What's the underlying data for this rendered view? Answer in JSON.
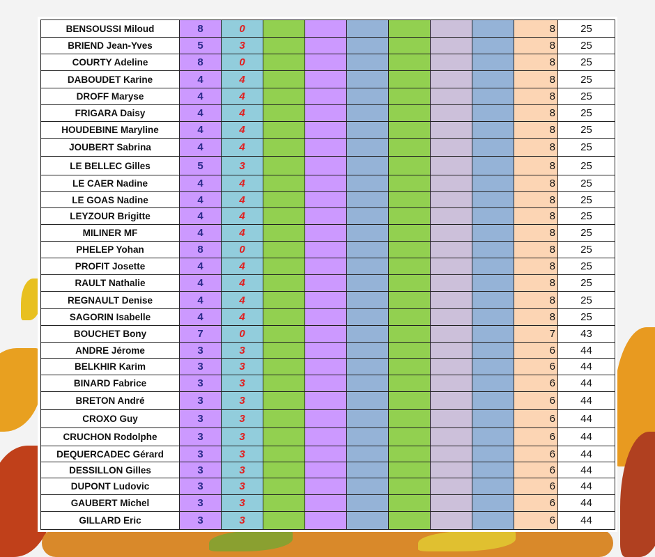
{
  "table": {
    "rows": [
      [
        "BENSOUSSI Miloud",
        "8",
        "0",
        "8",
        "25"
      ],
      [
        "BRIEND Jean-Yves",
        "5",
        "3",
        "8",
        "25"
      ],
      [
        "COURTY Adeline",
        "8",
        "0",
        "8",
        "25"
      ],
      [
        "DABOUDET Karine",
        "4",
        "4",
        "8",
        "25"
      ],
      [
        "DROFF Maryse",
        "4",
        "4",
        "8",
        "25"
      ],
      [
        "FRIGARA Daisy",
        "4",
        "4",
        "8",
        "25"
      ],
      [
        "HOUDEBINE Maryline",
        "4",
        "4",
        "8",
        "25"
      ],
      [
        "JOUBERT Sabrina",
        "4",
        "4",
        "8",
        "25"
      ],
      [
        "LE BELLEC Gilles",
        "5",
        "3",
        "8",
        "25"
      ],
      [
        "LE CAER Nadine",
        "4",
        "4",
        "8",
        "25"
      ],
      [
        "LE GOAS Nadine",
        "4",
        "4",
        "8",
        "25"
      ],
      [
        "LEYZOUR Brigitte",
        "4",
        "4",
        "8",
        "25"
      ],
      [
        "MILINER MF",
        "4",
        "4",
        "8",
        "25"
      ],
      [
        "PHELEP Yohan",
        "8",
        "0",
        "8",
        "25"
      ],
      [
        "PROFIT Josette",
        "4",
        "4",
        "8",
        "25"
      ],
      [
        "RAULT Nathalie",
        "4",
        "4",
        "8",
        "25"
      ],
      [
        "REGNAULT Denise",
        "4",
        "4",
        "8",
        "25"
      ],
      [
        "SAGORIN Isabelle",
        "4",
        "4",
        "8",
        "25"
      ],
      [
        "BOUCHET Bony",
        "7",
        "0",
        "7",
        "43"
      ],
      [
        "ANDRE Jérome",
        "3",
        "3",
        "6",
        "44"
      ],
      [
        "BELKHIR Karim",
        "3",
        "3",
        "6",
        "44"
      ],
      [
        "BINARD Fabrice",
        "3",
        "3",
        "6",
        "44"
      ],
      [
        "BRETON André",
        "3",
        "3",
        "6",
        "44"
      ],
      [
        "CROXO Guy",
        "3",
        "3",
        "6",
        "44"
      ],
      [
        "CRUCHON Rodolphe",
        "3",
        "3",
        "6",
        "44"
      ],
      [
        "DEQUERCADEC Gérard",
        "3",
        "3",
        "6",
        "44"
      ],
      [
        "DESSILLON Gilles",
        "3",
        "3",
        "6",
        "44"
      ],
      [
        "DUPONT Ludovic",
        "3",
        "3",
        "6",
        "44"
      ],
      [
        "GAUBERT Michel",
        "3",
        "3",
        "6",
        "44"
      ],
      [
        "GILLARD Eric",
        "3",
        "3",
        "6",
        "44"
      ]
    ]
  }
}
